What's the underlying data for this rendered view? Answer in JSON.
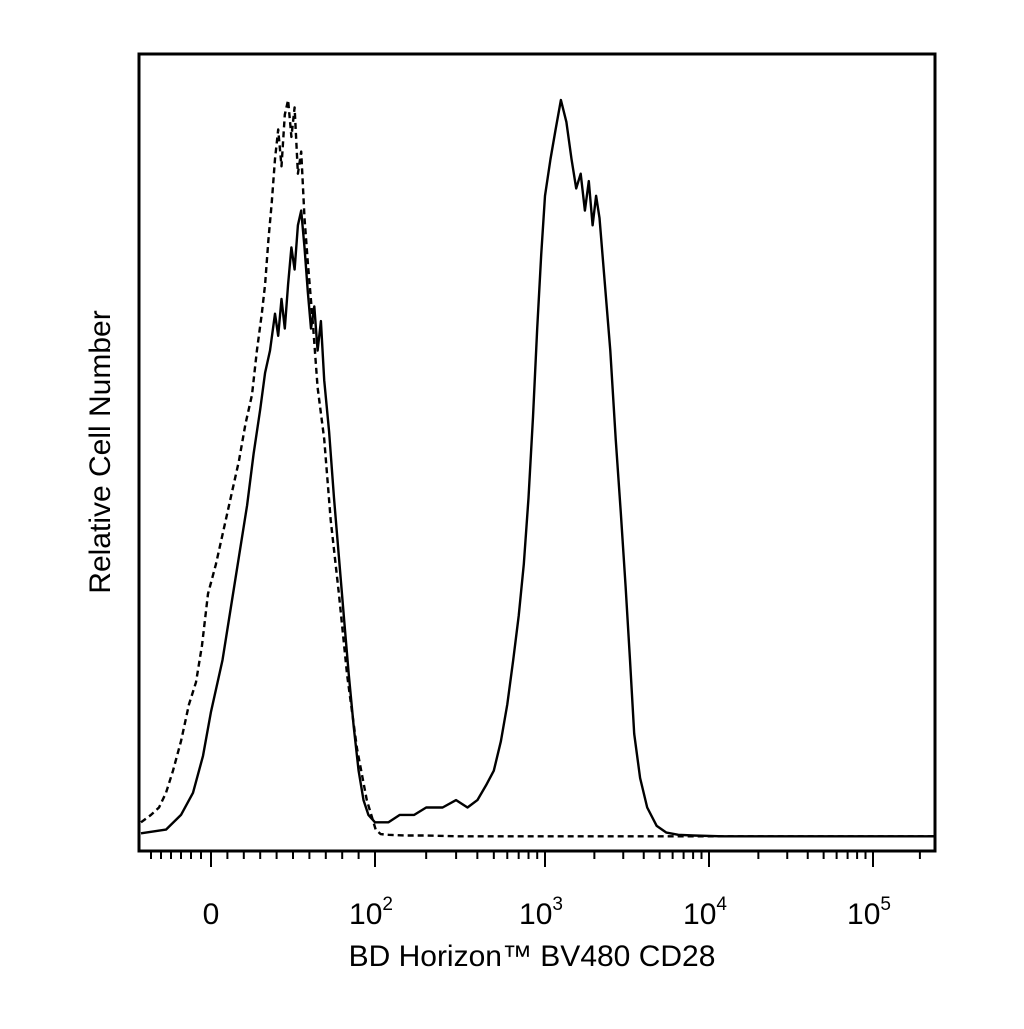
{
  "chart_data": {
    "type": "line",
    "xlabel": "BD Horizon™ BV480 CD28",
    "ylabel": "Relative Cell Number",
    "x_scale": "biexponential",
    "xlim": [
      -70,
      250000
    ],
    "ylim": [
      0,
      100
    ],
    "grid": false,
    "legend": "none",
    "x_tick_labels": [
      {
        "value": 0,
        "base": "0",
        "exp": ""
      },
      {
        "value": 100,
        "base": "10",
        "exp": "2"
      },
      {
        "value": 1000,
        "base": "10",
        "exp": "3"
      },
      {
        "value": 10000,
        "base": "10",
        "exp": "4"
      },
      {
        "value": 100000,
        "base": "10",
        "exp": "5"
      }
    ],
    "series": [
      {
        "style": "dashed",
        "color": "#000000",
        "points": [
          [
            -70,
            2
          ],
          [
            -60,
            3
          ],
          [
            -52,
            4
          ],
          [
            -45,
            6
          ],
          [
            -38,
            9
          ],
          [
            -30,
            13
          ],
          [
            -22,
            18
          ],
          [
            -15,
            21
          ],
          [
            -9,
            26
          ],
          [
            -3,
            33
          ],
          [
            3,
            37
          ],
          [
            8,
            42
          ],
          [
            13,
            47
          ],
          [
            17,
            51
          ],
          [
            21,
            56
          ],
          [
            25,
            60
          ],
          [
            28,
            66
          ],
          [
            31,
            71
          ],
          [
            33,
            75
          ],
          [
            35,
            81
          ],
          [
            37,
            86
          ],
          [
            39,
            92
          ],
          [
            41,
            96
          ],
          [
            43,
            91
          ],
          [
            45,
            98
          ],
          [
            47,
            100
          ],
          [
            49,
            95
          ],
          [
            51,
            99
          ],
          [
            53,
            90
          ],
          [
            55,
            93
          ],
          [
            57,
            84
          ],
          [
            59,
            78
          ],
          [
            62,
            70
          ],
          [
            65,
            61
          ],
          [
            69,
            54
          ],
          [
            73,
            43
          ],
          [
            78,
            33
          ],
          [
            83,
            22
          ],
          [
            89,
            12
          ],
          [
            95,
            5
          ],
          [
            101,
            1
          ],
          [
            108,
            0.4
          ],
          [
            120,
            0.3
          ],
          [
            150,
            0.2
          ],
          [
            200,
            0.2
          ],
          [
            300,
            0.1
          ],
          [
            500,
            0.1
          ],
          [
            1000,
            0.1
          ],
          [
            3000,
            0.1
          ],
          [
            10000,
            0.1
          ],
          [
            250000,
            0.1
          ]
        ]
      },
      {
        "style": "solid",
        "color": "#000000",
        "points": [
          [
            -70,
            0.5
          ],
          [
            -45,
            1
          ],
          [
            -30,
            3
          ],
          [
            -18,
            6
          ],
          [
            -8,
            11
          ],
          [
            0,
            17
          ],
          [
            7,
            24
          ],
          [
            12,
            31
          ],
          [
            17,
            38
          ],
          [
            22,
            45
          ],
          [
            26,
            52
          ],
          [
            30,
            58
          ],
          [
            33,
            63
          ],
          [
            36,
            66
          ],
          [
            39,
            71
          ],
          [
            41,
            68
          ],
          [
            43,
            73
          ],
          [
            45,
            69
          ],
          [
            47,
            75
          ],
          [
            49,
            80
          ],
          [
            51,
            77
          ],
          [
            53,
            83
          ],
          [
            55,
            85
          ],
          [
            57,
            80
          ],
          [
            59,
            74
          ],
          [
            61,
            69
          ],
          [
            63,
            72
          ],
          [
            65,
            66
          ],
          [
            67,
            70
          ],
          [
            69,
            62
          ],
          [
            72,
            55
          ],
          [
            75,
            46
          ],
          [
            78,
            38
          ],
          [
            81,
            30
          ],
          [
            84,
            22
          ],
          [
            87,
            15
          ],
          [
            90,
            9
          ],
          [
            93,
            5
          ],
          [
            96,
            3
          ],
          [
            100,
            2
          ],
          [
            110,
            2
          ],
          [
            120,
            2
          ],
          [
            140,
            3
          ],
          [
            170,
            3
          ],
          [
            200,
            4
          ],
          [
            250,
            4
          ],
          [
            300,
            5
          ],
          [
            350,
            4
          ],
          [
            400,
            5
          ],
          [
            450,
            7
          ],
          [
            500,
            9
          ],
          [
            550,
            13
          ],
          [
            600,
            18
          ],
          [
            650,
            24
          ],
          [
            700,
            30
          ],
          [
            750,
            37
          ],
          [
            800,
            46
          ],
          [
            850,
            57
          ],
          [
            900,
            69
          ],
          [
            950,
            79
          ],
          [
            1000,
            87
          ],
          [
            1080,
            92
          ],
          [
            1160,
            96
          ],
          [
            1250,
            100
          ],
          [
            1350,
            97
          ],
          [
            1450,
            92
          ],
          [
            1550,
            88
          ],
          [
            1650,
            90
          ],
          [
            1750,
            85
          ],
          [
            1850,
            89
          ],
          [
            1950,
            83
          ],
          [
            2050,
            87
          ],
          [
            2150,
            84
          ],
          [
            2300,
            76
          ],
          [
            2500,
            66
          ],
          [
            2700,
            54
          ],
          [
            2900,
            44
          ],
          [
            3100,
            34
          ],
          [
            3300,
            24
          ],
          [
            3500,
            14
          ],
          [
            3800,
            8
          ],
          [
            4200,
            4
          ],
          [
            4800,
            1.5
          ],
          [
            5500,
            0.6
          ],
          [
            6500,
            0.3
          ],
          [
            8000,
            0.2
          ],
          [
            12000,
            0.1
          ],
          [
            30000,
            0.1
          ],
          [
            250000,
            0.1
          ]
        ]
      }
    ]
  }
}
